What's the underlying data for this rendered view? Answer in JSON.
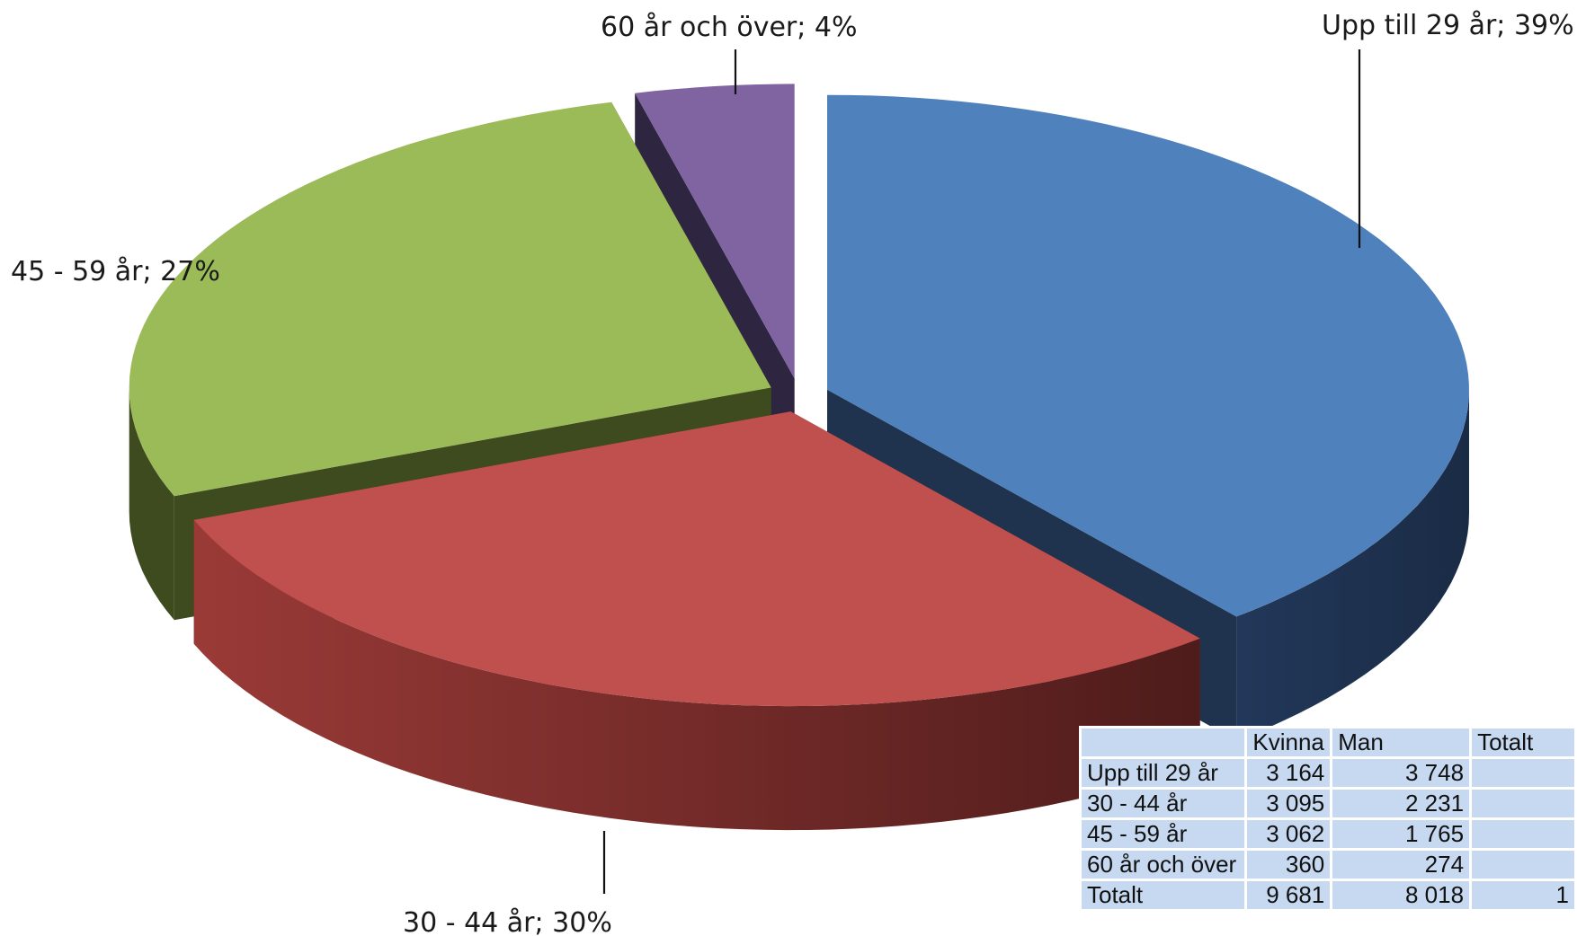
{
  "chart_data": {
    "type": "pie",
    "style": "3d-exploded",
    "slices": [
      {
        "label": "Upp till 29 år; 39%",
        "category": "Upp till 29 år",
        "value": 39,
        "color": "#4f81bd",
        "side_color": "#1f324e"
      },
      {
        "label": "30 - 44 år; 30%",
        "category": "30 - 44 år",
        "value": 30,
        "color": "#c0504d",
        "side_color": "#8c3330"
      },
      {
        "label": "45 - 59 år; 27%",
        "category": "45 - 59 år",
        "value": 27,
        "color": "#9bbb59",
        "side_color": "#3d4b1f"
      },
      {
        "label": "60 år och över; 4%",
        "category": "60 år och över",
        "value": 4,
        "color": "#8064a2",
        "side_color": "#2e2540"
      }
    ],
    "legend": "none",
    "data_table": {
      "headers": [
        "",
        "Kvinna",
        "Man",
        "Totalt"
      ],
      "rows": [
        [
          "Upp till 29 år",
          "3 164",
          "3 748",
          ""
        ],
        [
          "30 - 44 år",
          "3 095",
          "2 231",
          ""
        ],
        [
          "45 - 59 år",
          "3 062",
          "1 765",
          ""
        ],
        [
          "60 år och över",
          "360",
          "274",
          ""
        ],
        [
          "Totalt",
          "9 681",
          "8 018",
          "1"
        ]
      ]
    }
  }
}
